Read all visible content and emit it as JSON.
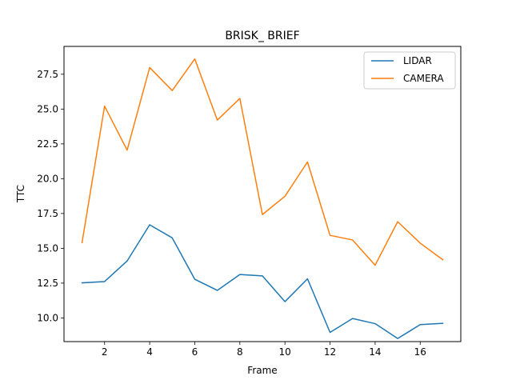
{
  "chart_data": {
    "type": "line",
    "title": "BRISK_ BRIEF",
    "xlabel": "Frame",
    "ylabel": "TTC",
    "x": [
      1,
      2,
      3,
      4,
      5,
      6,
      7,
      8,
      9,
      10,
      11,
      12,
      13,
      14,
      15,
      16,
      17
    ],
    "xlim": [
      0.2,
      17.8
    ],
    "ylim": [
      8.3,
      29.5
    ],
    "xticks": [
      2,
      4,
      6,
      8,
      10,
      12,
      14,
      16
    ],
    "xtick_labels": [
      "2",
      "4",
      "6",
      "8",
      "10",
      "12",
      "14",
      "16"
    ],
    "yticks": [
      10.0,
      12.5,
      15.0,
      17.5,
      20.0,
      22.5,
      25.0,
      27.5
    ],
    "ytick_labels": [
      "10.0",
      "12.5",
      "15.0",
      "17.5",
      "20.0",
      "22.5",
      "25.0",
      "27.5"
    ],
    "grid": false,
    "legend_position": "upper right",
    "series": [
      {
        "name": "LIDAR",
        "color": "#1f77b4",
        "values": [
          12.52,
          12.61,
          14.09,
          16.69,
          15.75,
          12.78,
          11.98,
          13.12,
          13.02,
          11.17,
          12.81,
          8.96,
          9.96,
          9.59,
          8.52,
          9.52,
          9.61
        ]
      },
      {
        "name": "CAMERA",
        "color": "#ff7f0e",
        "values": [
          15.41,
          25.21,
          22.05,
          27.98,
          26.33,
          28.6,
          24.21,
          25.76,
          17.42,
          18.74,
          21.2,
          15.93,
          15.6,
          13.79,
          16.91,
          15.37,
          14.18
        ]
      }
    ]
  }
}
